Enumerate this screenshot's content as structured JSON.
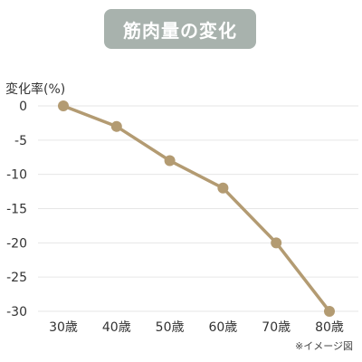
{
  "chart_data": {
    "type": "line",
    "title": "筋肉量の変化",
    "ylabel": "変化率(%)",
    "xlabel": "",
    "categories": [
      "30歳",
      "40歳",
      "50歳",
      "60歳",
      "70歳",
      "80歳"
    ],
    "series": [
      {
        "values": [
          0,
          -3,
          -8,
          -12,
          -20,
          -30
        ]
      }
    ],
    "ylim": [
      -30,
      0
    ],
    "yticks": [
      0,
      -5,
      -10,
      -15,
      -20,
      -25,
      -30
    ],
    "grid": true,
    "note": "※イメージ図",
    "colors": {
      "line": "#b39b72",
      "grid": "#e6e6e6",
      "title_bg": "#a8b2ad",
      "title_text": "#ffffff"
    }
  }
}
